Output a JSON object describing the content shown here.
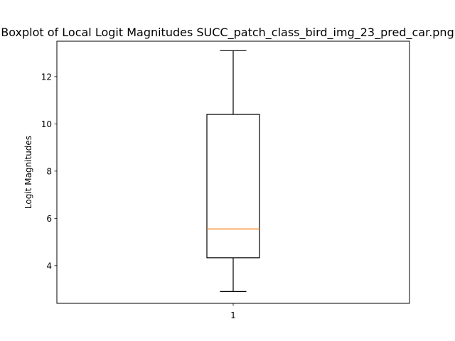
{
  "chart_data": {
    "type": "boxplot",
    "title": "Boxplot of Local Logit Magnitudes SUCC_patch_class_bird_img_23_pred_car.png",
    "xlabel": "",
    "ylabel": "Logit Magnitudes",
    "categories": [
      "1"
    ],
    "boxes": [
      {
        "category": "1",
        "whisker_low": 2.9,
        "q1": 4.33,
        "median": 5.55,
        "q3": 10.4,
        "whisker_high": 13.1
      }
    ],
    "ylim": [
      2.4,
      13.5
    ],
    "yticks": [
      4,
      6,
      8,
      10,
      12
    ],
    "grid": false,
    "colors": {
      "box": "#000000",
      "median": "#ff7f0e",
      "frame": "#000000"
    }
  }
}
